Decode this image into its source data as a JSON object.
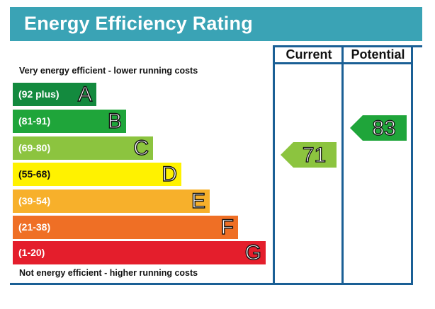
{
  "header": {
    "title": "Energy Efficiency Rating"
  },
  "columns": {
    "current": "Current",
    "potential": "Potential"
  },
  "notes": {
    "top": "Very energy efficient - lower running costs",
    "bottom": "Not energy efficient - higher running costs"
  },
  "bands": [
    {
      "range": "(92 plus)",
      "letter": "A",
      "color": "#138a3e"
    },
    {
      "range": "(81-91)",
      "letter": "B",
      "color": "#1fa53a"
    },
    {
      "range": "(69-80)",
      "letter": "C",
      "color": "#8cc43f"
    },
    {
      "range": "(55-68)",
      "letter": "D",
      "color": "#fff200"
    },
    {
      "range": "(39-54)",
      "letter": "E",
      "color": "#f7b02b"
    },
    {
      "range": "(21-38)",
      "letter": "F",
      "color": "#ef6f25"
    },
    {
      "range": "(1-20)",
      "letter": "G",
      "color": "#e41e2c"
    }
  ],
  "ratings": {
    "current": {
      "value": "71",
      "band": "C",
      "color": "#8cc43f"
    },
    "potential": {
      "value": "83",
      "band": "B",
      "color": "#1fa53a"
    }
  }
}
